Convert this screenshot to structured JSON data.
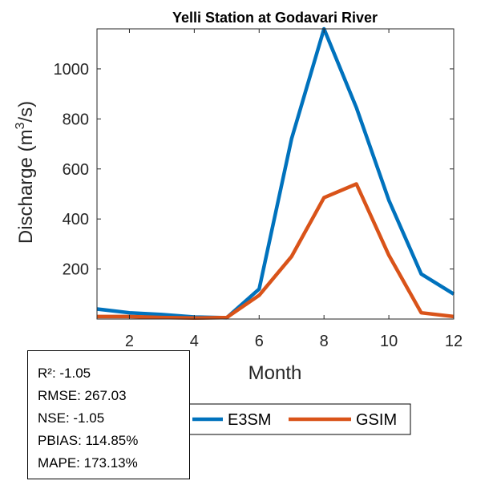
{
  "chart_data": {
    "type": "line",
    "title": "Yelli  Station at  Godavari  River",
    "xlabel": "Month",
    "ylabel_main": "Discharge (m",
    "ylabel_sup": "3",
    "ylabel_tail": "/s)",
    "xlim": [
      1,
      12
    ],
    "ylim": [
      0,
      1160
    ],
    "xticks": [
      2,
      4,
      6,
      8,
      10,
      12
    ],
    "yticks": [
      200,
      400,
      600,
      800,
      1000
    ],
    "grid": false,
    "legend_position": "bottom",
    "x": [
      1,
      2,
      3,
      4,
      5,
      6,
      7,
      8,
      9,
      10,
      11,
      12
    ],
    "series": [
      {
        "name": "E3SM",
        "color": "#0072BD",
        "values": [
          40,
          25,
          18,
          8,
          5,
          120,
          720,
          1160,
          845,
          475,
          180,
          100
        ]
      },
      {
        "name": "GSIM",
        "color": "#D95319",
        "values": [
          10,
          10,
          6,
          4,
          6,
          95,
          250,
          485,
          540,
          255,
          25,
          10
        ]
      }
    ]
  },
  "stats": {
    "r2": "R²: -1.05",
    "rmse": "RMSE: 267.03",
    "nse": "NSE: -1.05",
    "pbias": "PBIAS: 114.85%",
    "mape": "MAPE: 173.13%"
  }
}
